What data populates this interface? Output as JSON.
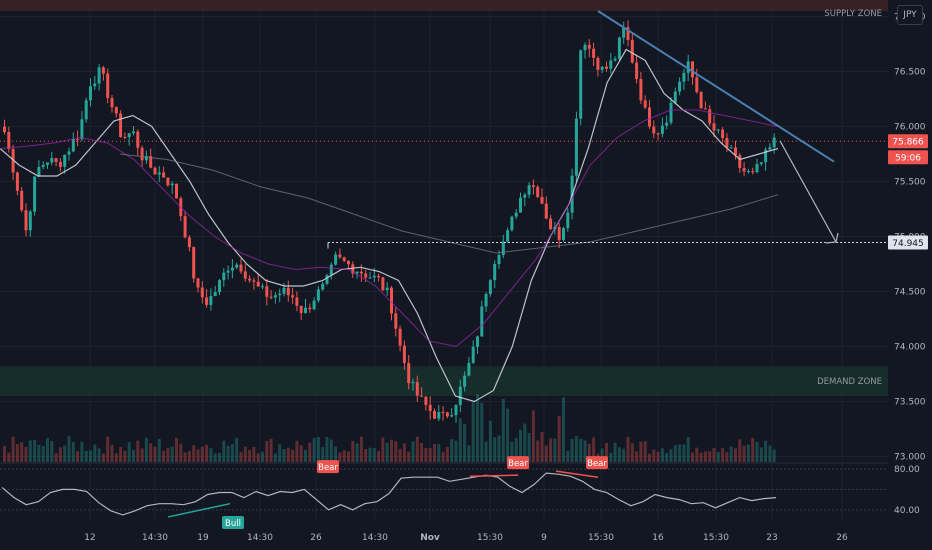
{
  "currency_label": "JPY",
  "zones": {
    "supply": "SUPPLY ZONE",
    "demand": "DEMAND ZONE"
  },
  "price_labels": {
    "last_price": "75.866",
    "countdown": "59:06",
    "target": "74.945"
  },
  "colors": {
    "bull": "#26a69a",
    "bear": "#ef5350",
    "trendline": "#4a7fb0",
    "ma_fast": "#d1d4dc",
    "ma_mid": "#9c27b0",
    "ma_slow": "#787b86",
    "rsi": "#b2b5be",
    "supply_zone": "#3b2126",
    "demand_zone": "#18302c",
    "background": "#131722"
  },
  "chart_data": {
    "type": "candlestick",
    "y_axis": {
      "ticks": [
        "77.000",
        "76.500",
        "76.000",
        "75.500",
        "75.000",
        "74.500",
        "74.000",
        "73.500",
        "73.000"
      ],
      "range": [
        72.95,
        77.15
      ]
    },
    "x_axis": {
      "ticks": [
        "12",
        "14:30",
        "19",
        "14:30",
        "26",
        "14:30",
        "Nov",
        "15:30",
        "9",
        "15:30",
        "16",
        "15:30",
        "23",
        "26"
      ]
    },
    "ohlc_close_path": [
      75.95,
      75.55,
      75.05,
      75.6,
      75.7,
      75.65,
      75.8,
      75.95,
      76.4,
      76.5,
      76.2,
      75.9,
      75.95,
      75.7,
      75.6,
      75.55,
      75.4,
      75.0,
      74.5,
      74.4,
      74.55,
      74.75,
      74.75,
      74.6,
      74.5,
      74.45,
      74.5,
      74.45,
      74.3,
      74.45,
      74.55,
      74.8,
      74.75,
      74.7,
      74.65,
      74.6,
      74.45,
      74.0,
      73.65,
      73.5,
      73.4,
      73.35,
      73.45,
      73.7,
      74.0,
      74.5,
      74.85,
      75.0,
      75.3,
      75.5,
      75.4,
      75.1,
      75.0,
      75.4,
      76.85,
      76.65,
      76.5,
      76.6,
      76.9,
      76.5,
      76.1,
      75.95,
      76.1,
      76.4,
      76.55,
      76.25,
      76.0,
      75.9,
      75.75,
      75.6,
      75.55,
      75.7,
      75.86
    ],
    "series": [
      {
        "name": "",
        "type": "ma",
        "values": [
          75.8,
          75.65,
          75.55,
          75.55,
          75.65,
          75.85,
          76.05,
          76.1,
          76.0,
          75.75,
          75.5,
          75.2,
          74.95,
          74.75,
          74.6,
          74.55,
          74.55,
          74.6,
          74.7,
          74.72,
          74.68,
          74.6,
          74.3,
          73.9,
          73.55,
          73.5,
          73.6,
          74.0,
          74.6,
          75.0,
          75.3,
          75.8,
          76.4,
          76.7,
          76.6,
          76.3,
          76.15,
          76.05,
          75.85,
          75.7,
          75.75,
          75.8
        ]
      },
      {
        "name": "",
        "type": "ma",
        "values": [
          75.8,
          75.82,
          75.85,
          75.9,
          75.85,
          75.7,
          75.45,
          75.2,
          75.0,
          74.85,
          74.75,
          74.7,
          74.72,
          74.7,
          74.55,
          74.3,
          74.05,
          74.0,
          74.2,
          74.5,
          74.8,
          75.2,
          75.65,
          75.9,
          76.05,
          76.15,
          76.15,
          76.1,
          76.05,
          76.0
        ]
      },
      {
        "name": "",
        "type": "ma",
        "values": [
          75.75,
          75.7,
          75.6,
          75.45,
          75.35,
          75.2,
          75.05,
          74.95,
          74.85,
          74.9,
          74.95,
          75.05,
          75.15,
          75.25,
          75.38
        ]
      }
    ],
    "levels": [
      {
        "value": 75.866
      },
      {
        "value": 74.945
      }
    ],
    "zones": [
      {
        "label": "SUPPLY ZONE",
        "from": 77.05,
        "to": 77.3
      },
      {
        "label": "DEMAND ZONE",
        "from": 73.55,
        "to": 73.82
      }
    ],
    "trendline": {
      "from": [
        29,
        77.05
      ],
      "to": [
        42,
        75.68
      ]
    },
    "rsi": {
      "ticks": [
        "80.00",
        "40.00"
      ],
      "range": [
        30,
        84
      ],
      "values": [
        62,
        52,
        45,
        48,
        57,
        60,
        60,
        58,
        47,
        39,
        35,
        39,
        44,
        46,
        46,
        45,
        48,
        55,
        57,
        57,
        52,
        58,
        54,
        58,
        57,
        60,
        50,
        40,
        45,
        40,
        46,
        48,
        56,
        71,
        72,
        72,
        72,
        68,
        70,
        72,
        74,
        72,
        63,
        57,
        65,
        76,
        75,
        73,
        68,
        60,
        57,
        50,
        44,
        48,
        55,
        52,
        50,
        46,
        47,
        42,
        47,
        52,
        49,
        51,
        52
      ]
    },
    "signals": [
      {
        "label": "Bull"
      },
      {
        "label": "Bear"
      },
      {
        "label": "Bear"
      },
      {
        "label": "Bear"
      }
    ]
  }
}
